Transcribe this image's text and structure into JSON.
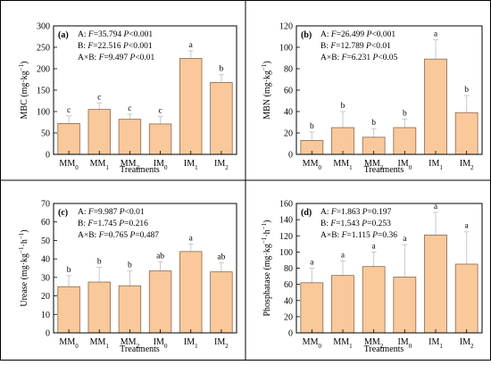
{
  "chart_data": [
    {
      "panel_label": "(a)",
      "type": "bar",
      "categories": [
        {
          "base": "MM",
          "sub": "0"
        },
        {
          "base": "MM",
          "sub": "1"
        },
        {
          "base": "MM",
          "sub": "2"
        },
        {
          "base": "IM",
          "sub": "0"
        },
        {
          "base": "IM",
          "sub": "1"
        },
        {
          "base": "IM",
          "sub": "2"
        }
      ],
      "values": [
        72,
        105,
        82,
        71,
        224,
        168
      ],
      "errors": [
        18,
        15,
        12,
        18,
        18,
        18
      ],
      "letters": [
        "c",
        "c",
        "c",
        "c",
        "a",
        "b"
      ],
      "ylabel": "MBC (mg·kg⁻¹)",
      "xlabel": "Treatments",
      "ylim": [
        0,
        300
      ],
      "yticks": [
        0,
        50,
        100,
        150,
        200,
        250,
        300
      ],
      "stats": [
        {
          "prefix": "A: ",
          "fval": "35.794",
          "ptext": "<0.001"
        },
        {
          "prefix": "B: ",
          "fval": "22.516",
          "ptext": "<0.001"
        },
        {
          "prefix": "A×B: ",
          "fval": "9.497",
          "ptext": "<0.01"
        }
      ]
    },
    {
      "panel_label": "(b)",
      "type": "bar",
      "categories": [
        {
          "base": "MM",
          "sub": "0"
        },
        {
          "base": "MM",
          "sub": "1"
        },
        {
          "base": "MM",
          "sub": "2"
        },
        {
          "base": "IM",
          "sub": "0"
        },
        {
          "base": "IM",
          "sub": "1"
        },
        {
          "base": "IM",
          "sub": "2"
        }
      ],
      "values": [
        13,
        25,
        16,
        25,
        89,
        39
      ],
      "errors": [
        8,
        15,
        8,
        8,
        18,
        16
      ],
      "letters": [
        "b",
        "b",
        "b",
        "b",
        "a",
        "b"
      ],
      "ylabel": "MBN (mg·kg⁻¹)",
      "xlabel": "Treatments",
      "ylim": [
        0,
        120
      ],
      "yticks": [
        0,
        20,
        40,
        60,
        80,
        100,
        120
      ],
      "stats": [
        {
          "prefix": "A: ",
          "fval": "26.499",
          "ptext": "<0.001"
        },
        {
          "prefix": "B: ",
          "fval": "12.789",
          "ptext": "<0.01"
        },
        {
          "prefix": "A×B: ",
          "fval": "6.231",
          "ptext": "<0.05"
        }
      ]
    },
    {
      "panel_label": "(c)",
      "type": "bar",
      "categories": [
        {
          "base": "MM",
          "sub": "0"
        },
        {
          "base": "MM",
          "sub": "1"
        },
        {
          "base": "MM",
          "sub": "2"
        },
        {
          "base": "IM",
          "sub": "0"
        },
        {
          "base": "IM",
          "sub": "1"
        },
        {
          "base": "IM",
          "sub": "2"
        }
      ],
      "values": [
        25,
        27.5,
        25.5,
        33.5,
        44,
        33
      ],
      "errors": [
        6,
        8,
        8,
        5,
        4,
        5
      ],
      "letters": [
        "b",
        "b",
        "b",
        "ab",
        "a",
        "ab"
      ],
      "ylabel": "Urease (mg·kg⁻¹·h⁻¹)",
      "xlabel": "Treatments",
      "ylim": [
        0,
        70
      ],
      "yticks": [
        0,
        10,
        20,
        30,
        40,
        50,
        60,
        70
      ],
      "stats": [
        {
          "prefix": "A: ",
          "fval": "9.987",
          "ptext": "<0.01"
        },
        {
          "prefix": "B: ",
          "fval": "1.745",
          "ptext": "=0.216"
        },
        {
          "prefix": "A×B: ",
          "fval": "0.765",
          "ptext": "=0.487"
        }
      ]
    },
    {
      "panel_label": "(d)",
      "type": "bar",
      "categories": [
        {
          "base": "MM",
          "sub": "0"
        },
        {
          "base": "MM",
          "sub": "1"
        },
        {
          "base": "MM",
          "sub": "2"
        },
        {
          "base": "IM",
          "sub": "0"
        },
        {
          "base": "IM",
          "sub": "1"
        },
        {
          "base": "IM",
          "sub": "2"
        }
      ],
      "values": [
        62,
        71,
        82,
        69,
        121,
        85
      ],
      "errors": [
        18,
        18,
        18,
        40,
        28,
        40
      ],
      "letters": [
        "a",
        "a",
        "a",
        "a",
        "a",
        "a"
      ],
      "ylabel": "Phosphatase (mg·kg⁻¹·h⁻¹)",
      "xlabel": "Treatments",
      "ylim": [
        0,
        160
      ],
      "yticks": [
        0,
        20,
        40,
        60,
        80,
        100,
        120,
        140,
        160
      ],
      "stats": [
        {
          "prefix": "A: ",
          "fval": "1.863",
          "ptext": "=0.197"
        },
        {
          "prefix": "B: ",
          "fval": "1.543",
          "ptext": "=0.253"
        },
        {
          "prefix": "A×B: ",
          "fval": "1.115",
          "ptext": "=0.36"
        }
      ]
    }
  ],
  "style": {
    "bar_fill": "#F9C89B",
    "bar_stroke": "#8A6A4C",
    "error_color": "#C8C8C8",
    "frame_color": "#000000"
  }
}
